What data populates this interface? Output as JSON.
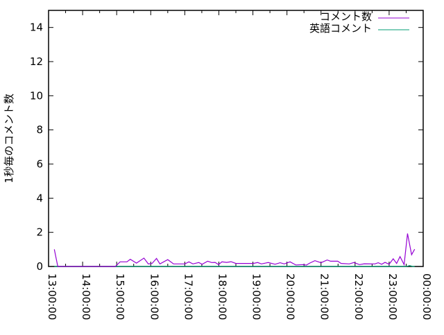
{
  "chart_data": {
    "type": "line",
    "title": "",
    "xlabel": "",
    "ylabel": "1秒毎のコメント数",
    "x_unit": "hours",
    "xlim": [
      13,
      24
    ],
    "ylim": [
      0,
      15
    ],
    "x_ticks": [
      13,
      14,
      15,
      16,
      17,
      18,
      19,
      20,
      21,
      22,
      23,
      24
    ],
    "x_tick_labels": [
      "13:00:00",
      "14:00:00",
      "15:00:00",
      "16:00:00",
      "17:00:00",
      "18:00:00",
      "19:00:00",
      "20:00:00",
      "21:00:00",
      "22:00:00",
      "23:00:00",
      "00:00:00"
    ],
    "y_ticks": [
      0,
      2,
      4,
      6,
      8,
      10,
      12,
      14
    ],
    "y_tick_labels": [
      "0",
      "2",
      "4",
      "6",
      "8",
      "10",
      "12",
      "14"
    ],
    "grid": false,
    "legend_position": "top-right",
    "series": [
      {
        "name": "コメント数",
        "color": "#9400d3",
        "x": [
          13.17,
          13.27,
          14.96,
          15.1,
          15.3,
          15.4,
          15.58,
          15.8,
          15.93,
          16.04,
          16.17,
          16.27,
          16.5,
          16.67,
          17.0,
          17.12,
          17.24,
          17.41,
          17.51,
          17.67,
          17.79,
          17.89,
          17.99,
          18.09,
          18.23,
          18.36,
          18.5,
          19.01,
          19.14,
          19.25,
          19.45,
          19.65,
          19.8,
          19.92,
          20.09,
          20.26,
          20.47,
          20.57,
          20.67,
          20.82,
          21.0,
          21.18,
          21.28,
          21.49,
          21.59,
          21.83,
          21.96,
          22.13,
          22.27,
          22.58,
          22.68,
          22.78,
          22.88,
          23.0,
          23.12,
          23.22,
          23.32,
          23.44,
          23.54,
          23.66,
          23.75
        ],
        "y": [
          1.0,
          0,
          0,
          0.27,
          0.27,
          0.42,
          0.2,
          0.49,
          0.15,
          0.18,
          0.47,
          0.15,
          0.4,
          0.15,
          0.15,
          0.27,
          0.15,
          0.23,
          0.13,
          0.31,
          0.23,
          0.24,
          0.11,
          0.27,
          0.24,
          0.28,
          0.18,
          0.18,
          0.23,
          0.15,
          0.23,
          0.13,
          0.22,
          0.15,
          0.27,
          0.09,
          0.11,
          0.08,
          0.2,
          0.34,
          0.22,
          0.38,
          0.31,
          0.31,
          0.18,
          0.15,
          0.23,
          0.11,
          0.16,
          0.15,
          0.22,
          0.13,
          0.24,
          0.13,
          0.45,
          0.18,
          0.58,
          0.11,
          1.93,
          0.69,
          1.01
        ]
      },
      {
        "name": "英語コメント",
        "color": "#009e73",
        "x": [
          13.17,
          14.96,
          15.5,
          16.0,
          16.5,
          17.0,
          17.5,
          18.0,
          18.5,
          19.0,
          19.5,
          20.0,
          20.5,
          21.0,
          21.5,
          22.0,
          22.5,
          23.0,
          23.5,
          23.6,
          23.7,
          23.75
        ],
        "y": [
          0,
          0,
          0,
          0,
          0,
          0,
          0,
          0,
          0,
          0,
          0,
          0,
          0,
          0,
          0,
          0,
          0,
          0,
          0,
          0.05,
          0,
          0
        ]
      }
    ]
  }
}
